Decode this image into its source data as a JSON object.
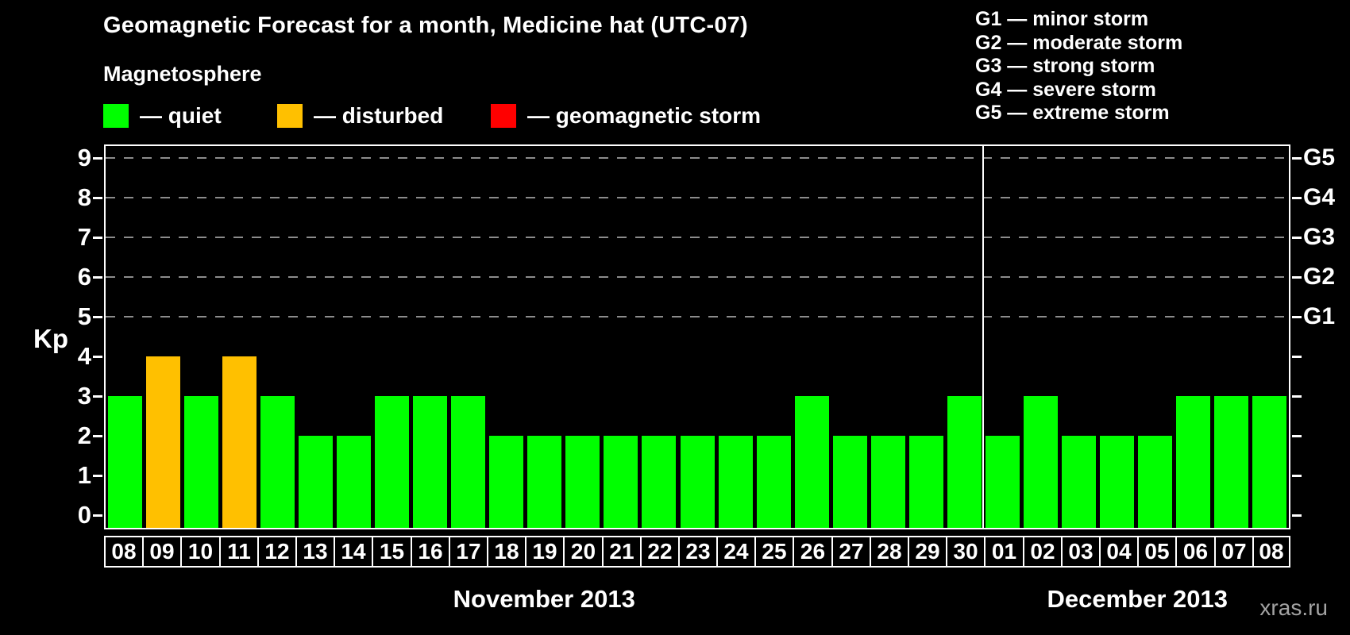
{
  "title": "Geomagnetic Forecast for a month, Medicine hat (UTC-07)",
  "subtitle": "Magnetosphere",
  "legend": [
    {
      "status": "quiet",
      "label": "— quiet",
      "color": "#00ff00"
    },
    {
      "status": "disturbed",
      "label": "— disturbed",
      "color": "#ffc000"
    },
    {
      "status": "storm",
      "label": "— geomagnetic storm",
      "color": "#ff0000"
    }
  ],
  "storm_scale_legend": [
    "G1 — minor storm",
    "G2 — moderate storm",
    "G3 — strong storm",
    "G4 — severe storm",
    "G5 — extreme storm"
  ],
  "watermark": "xras.ru",
  "colors": {
    "quiet": "#00ff00",
    "disturbed": "#ffc000",
    "storm": "#ff0000",
    "background": "#000000",
    "axis": "#ffffff",
    "grid": "#8c8c8c",
    "watermark": "#a3a3a3"
  },
  "chart_data": {
    "type": "bar",
    "title": "Geomagnetic Forecast for a month, Medicine hat (UTC-07)",
    "ylabel": "Kp",
    "ylim": [
      -0.32,
      9.38
    ],
    "yticks": [
      0,
      1,
      2,
      3,
      4,
      5,
      6,
      7,
      8,
      9
    ],
    "gridline_values": [
      5,
      6,
      7,
      8,
      9
    ],
    "grid": "dashed-horizontal",
    "right_axis_labels": [
      {
        "label": "G1",
        "kp": 5
      },
      {
        "label": "G2",
        "kp": 6
      },
      {
        "label": "G3",
        "kp": 7
      },
      {
        "label": "G4",
        "kp": 8
      },
      {
        "label": "G5",
        "kp": 9
      }
    ],
    "months": [
      {
        "label": "November 2013",
        "count": 23
      },
      {
        "label": "December 2013",
        "count": 8
      }
    ],
    "categories": [
      "08",
      "09",
      "10",
      "11",
      "12",
      "13",
      "14",
      "15",
      "16",
      "17",
      "18",
      "19",
      "20",
      "21",
      "22",
      "23",
      "24",
      "25",
      "26",
      "27",
      "28",
      "29",
      "30",
      "01",
      "02",
      "03",
      "04",
      "05",
      "06",
      "07",
      "08"
    ],
    "values": [
      3,
      4,
      3,
      4,
      3,
      2,
      2,
      3,
      3,
      3,
      2,
      2,
      2,
      2,
      2,
      2,
      2,
      2,
      3,
      2,
      2,
      2,
      3,
      2,
      3,
      2,
      2,
      2,
      3,
      3,
      3
    ],
    "statuses": [
      "quiet",
      "disturbed",
      "quiet",
      "disturbed",
      "quiet",
      "quiet",
      "quiet",
      "quiet",
      "quiet",
      "quiet",
      "quiet",
      "quiet",
      "quiet",
      "quiet",
      "quiet",
      "quiet",
      "quiet",
      "quiet",
      "quiet",
      "quiet",
      "quiet",
      "quiet",
      "quiet",
      "quiet",
      "quiet",
      "quiet",
      "quiet",
      "quiet",
      "quiet",
      "quiet",
      "quiet"
    ]
  }
}
